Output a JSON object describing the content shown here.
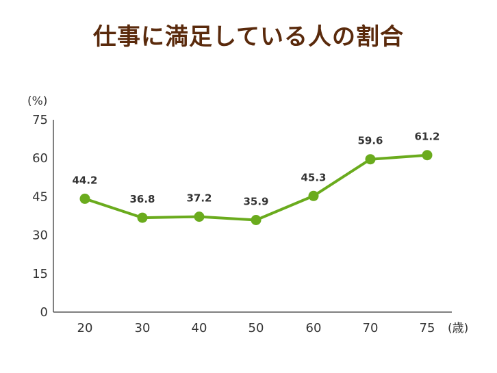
{
  "chart_data": {
    "type": "line",
    "title": "仕事に満足している人の割合",
    "ylabel": "(%)",
    "xlabel": "(歳)",
    "categories": [
      "20",
      "30",
      "40",
      "50",
      "60",
      "70",
      "75"
    ],
    "series": [
      {
        "values": [
          44.2,
          36.8,
          37.2,
          35.9,
          45.3,
          59.6,
          61.2
        ]
      }
    ],
    "data_labels": [
      "44.2",
      "36.8",
      "37.2",
      "35.9",
      "45.3",
      "59.6",
      "61.2"
    ],
    "y_ticks": [
      0,
      15,
      30,
      45,
      60,
      75
    ],
    "ylim": [
      0,
      75
    ],
    "grid": false,
    "line_color": "#6aab1d",
    "title_color": "#5a2a0c"
  }
}
